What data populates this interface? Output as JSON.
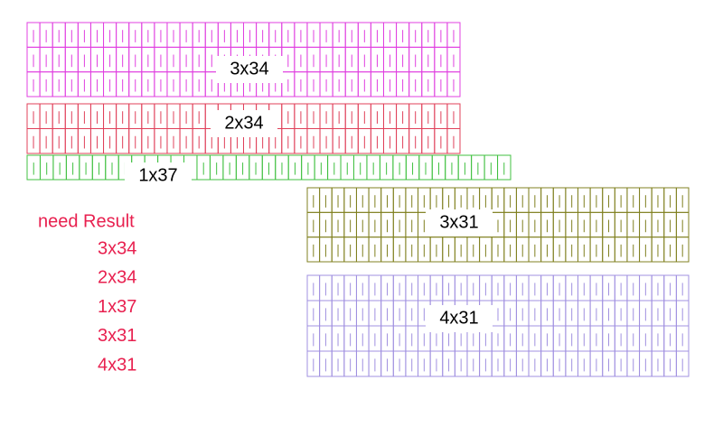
{
  "blocks": [
    {
      "label": "3x34",
      "rows": 3,
      "cols": 34,
      "color": "#e040e0"
    },
    {
      "label": "2x34",
      "rows": 2,
      "cols": 34,
      "color": "#e0405a"
    },
    {
      "label": "1x37",
      "rows": 1,
      "cols": 37,
      "color": "#40c040"
    },
    {
      "label": "3x31",
      "rows": 3,
      "cols": 31,
      "color": "#808020"
    },
    {
      "label": "4x31",
      "rows": 4,
      "cols": 31,
      "color": "#a090e0"
    }
  ],
  "result": {
    "title": "need Result",
    "items": [
      "3x34",
      "2x34",
      "1x37",
      "3x31",
      "4x31"
    ]
  }
}
